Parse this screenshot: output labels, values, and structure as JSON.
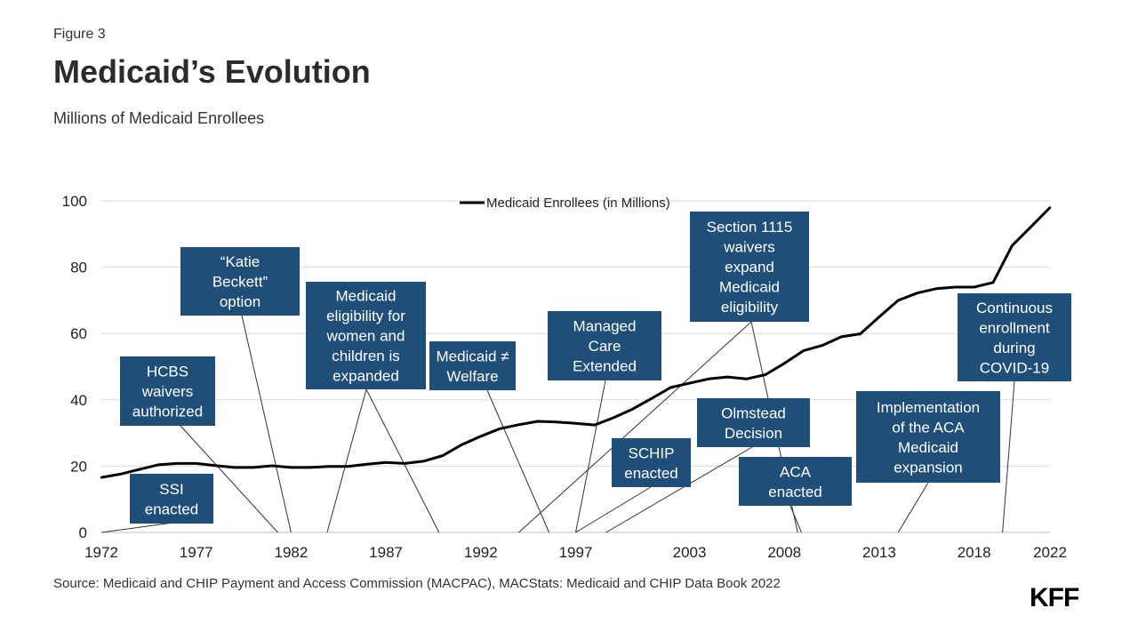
{
  "header": {
    "figure_label": "Figure 3",
    "title": "Medicaid’s Evolution",
    "subtitle": "Millions of Medicaid Enrollees"
  },
  "footer": {
    "source": "Source: Medicaid and CHIP Payment and Access Commission (MACPAC), MACStats: Medicaid and CHIP Data Book 2022",
    "logo_text": "KFF"
  },
  "colors": {
    "line": "#000000",
    "annotation_box": "#1f4e79",
    "annotation_text": "#ffffff",
    "grid": "#d9d9d9"
  },
  "chart_data": {
    "type": "line",
    "title": "Medicaid’s Evolution",
    "xlabel": "",
    "ylabel": "Millions of Medicaid Enrollees",
    "xlim": [
      1972,
      2022
    ],
    "ylim": [
      0,
      100
    ],
    "x_ticks": [
      "1972",
      "1977",
      "1982",
      "1987",
      "1992",
      "1997",
      "2003",
      "2008",
      "2013",
      "2018",
      "2022"
    ],
    "y_ticks": [
      "0",
      "20",
      "40",
      "60",
      "80",
      "100"
    ],
    "grid": "horizontal",
    "legend": "top-center",
    "series": [
      {
        "name": "Medicaid Enrollees (in Millions)",
        "x": [
          1972,
          1973,
          1974,
          1975,
          1976,
          1977,
          1978,
          1979,
          1980,
          1981,
          1982,
          1983,
          1984,
          1985,
          1986,
          1987,
          1988,
          1989,
          1990,
          1991,
          1992,
          1993,
          1994,
          1995,
          1996,
          1997,
          1998,
          1999,
          2000,
          2001,
          2002,
          2003,
          2004,
          2005,
          2006,
          2007,
          2008,
          2009,
          2010,
          2011,
          2012,
          2013,
          2014,
          2015,
          2016,
          2017,
          2018,
          2019,
          2020,
          2021,
          2022
        ],
        "values": [
          16.6,
          17.6,
          19.0,
          20.4,
          20.8,
          20.8,
          20.2,
          19.6,
          19.6,
          20.1,
          19.6,
          19.6,
          19.9,
          19.9,
          20.6,
          21.1,
          20.8,
          21.5,
          23.2,
          26.5,
          29.0,
          31.3,
          32.5,
          33.5,
          33.3,
          32.9,
          32.4,
          34.6,
          37.2,
          40.4,
          43.7,
          45.0,
          46.3,
          46.9,
          46.3,
          47.6,
          51.0,
          54.8,
          56.4,
          59.0,
          59.9,
          65.0,
          70.0,
          72.2,
          73.5,
          74.0,
          74.0,
          75.4,
          86.5,
          92.2,
          98.0
        ]
      }
    ],
    "annotations": [
      {
        "lines": [
          "SSI",
          "enacted"
        ],
        "year": 1972
      },
      {
        "lines": [
          "HCBS",
          "waivers",
          "authorized"
        ],
        "year": 1981
      },
      {
        "lines": [
          "“Katie",
          "Beckett”",
          "option"
        ],
        "year": 1982
      },
      {
        "lines": [
          "Medicaid",
          "eligibility for",
          "women and",
          "children is",
          "expanded"
        ],
        "year": 1984
      },
      {
        "lines": [
          "Medicaid",
          "eligibility for",
          "women and",
          "children is",
          "expanded"
        ],
        "year": 1990
      },
      {
        "lines": [
          "Medicaid ≠",
          "Welfare"
        ],
        "year": 1996
      },
      {
        "lines": [
          "Managed",
          "Care",
          "Extended"
        ],
        "year": 1997
      },
      {
        "lines": [
          "Section 1115",
          "waivers",
          "expand",
          "Medicaid",
          "eligibility"
        ],
        "year": 1993
      },
      {
        "lines": [
          "Section 1115",
          "waivers",
          "expand",
          "Medicaid",
          "eligibility"
        ],
        "year": 2009
      },
      {
        "lines": [
          "SCHIP",
          "enacted"
        ],
        "year": 1997
      },
      {
        "lines": [
          "Olmstead",
          "Decision"
        ],
        "year": 1999
      },
      {
        "lines": [
          "ACA",
          "enacted"
        ],
        "year": 2010
      },
      {
        "lines": [
          "Implementation",
          "of the ACA",
          "Medicaid",
          "expansion"
        ],
        "year": 2014
      },
      {
        "lines": [
          "Continuous",
          "enrollment",
          "during",
          "COVID-19"
        ],
        "year": 2020
      }
    ]
  }
}
